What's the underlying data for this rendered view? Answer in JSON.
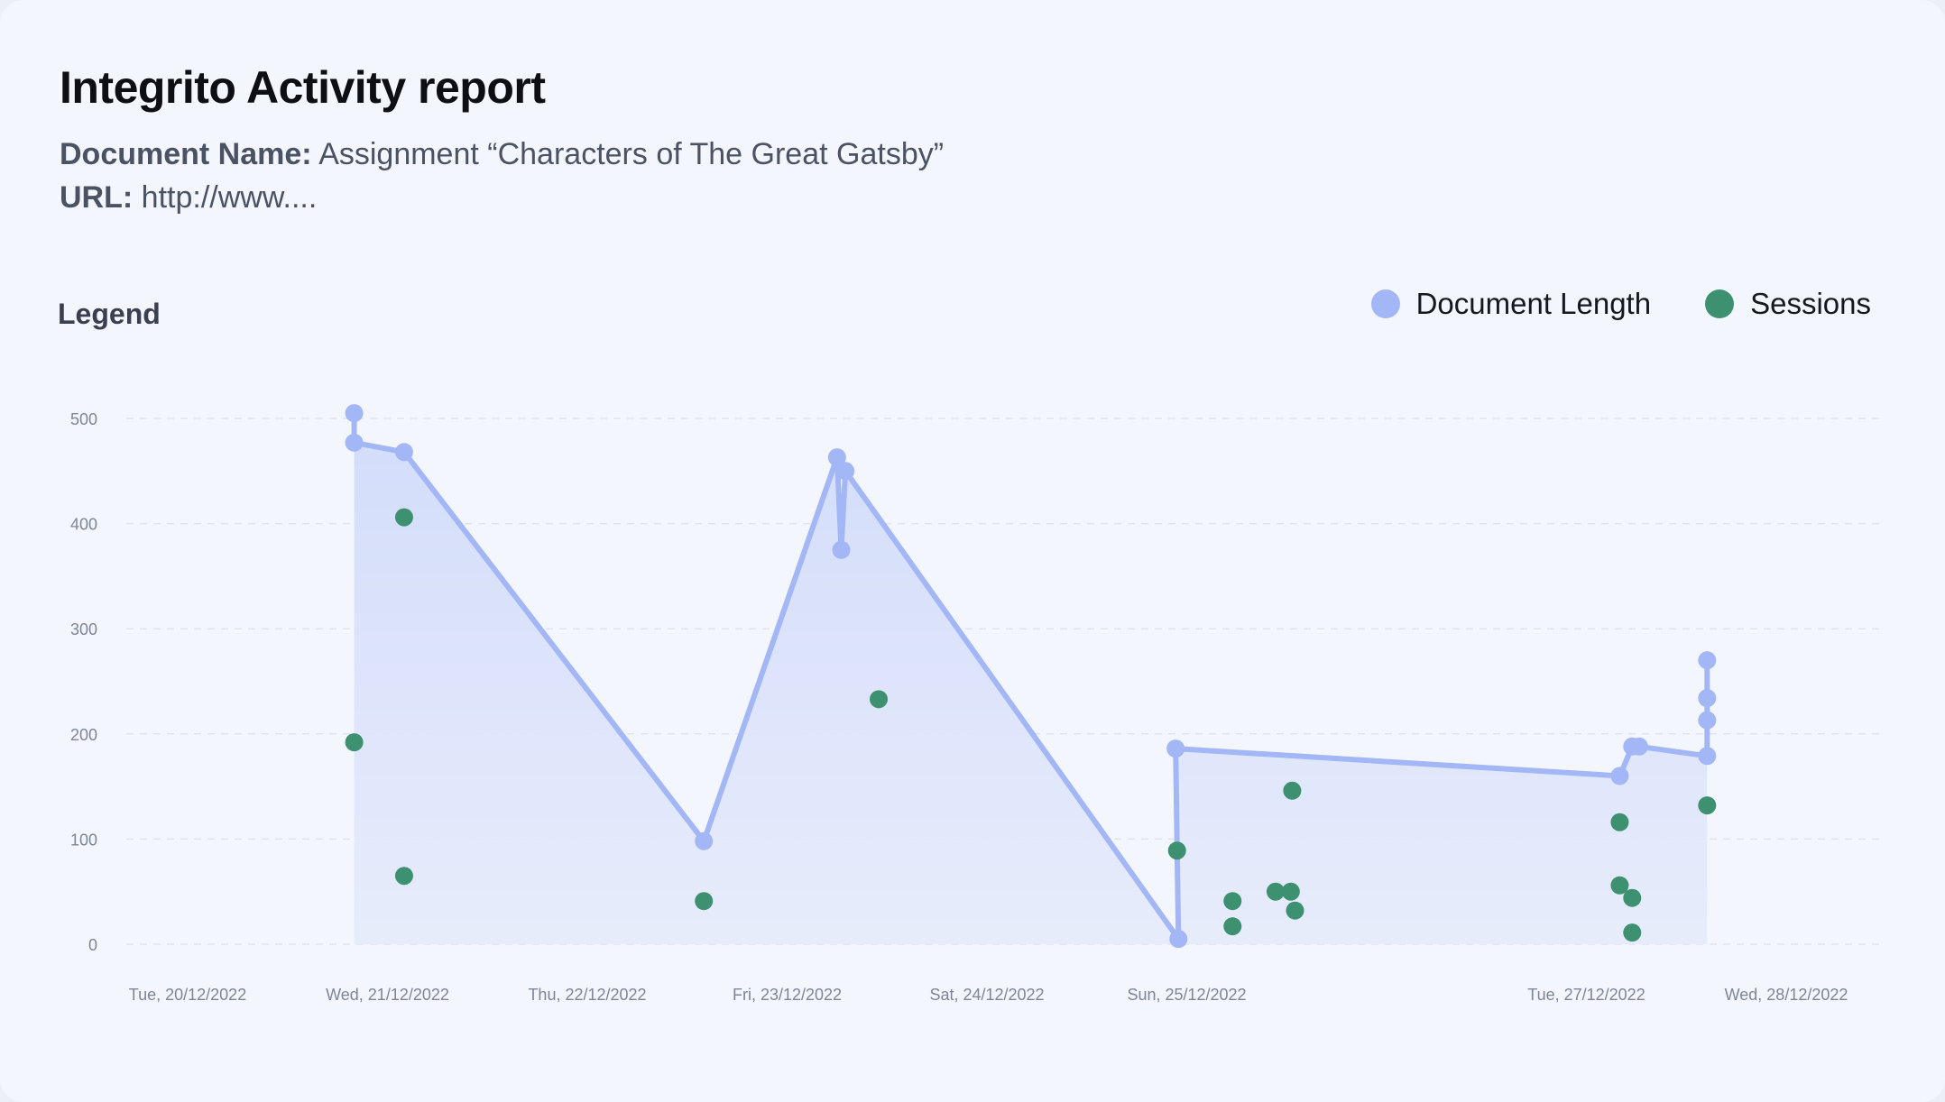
{
  "header": {
    "title": "Integrito Activity report",
    "document_name_label": "Document Name:",
    "document_name_value": "Assignment “Characters of The Great Gatsby”",
    "url_label": "URL:",
    "url_value": "http://www...."
  },
  "legend": {
    "heading": "Legend",
    "items": [
      {
        "label": "Document Length",
        "color": "#a3b6f5"
      },
      {
        "label": "Sessions",
        "color": "#3d9170"
      }
    ]
  },
  "colors": {
    "line": "#a3b6f5",
    "area_top": "#d2dcfa",
    "area_bottom": "#e6ebfb",
    "session": "#3d9170",
    "grid": "#dfe3ee",
    "tick_text": "#7d8597"
  },
  "chart_data": {
    "type": "line",
    "title": "",
    "xlabel": "",
    "ylabel": "",
    "ylim": [
      0,
      500
    ],
    "yticks": [
      0,
      100,
      200,
      300,
      400,
      500
    ],
    "x_start": "2022-12-20",
    "x_end": "2022-12-28",
    "xticks": [
      {
        "date": "2022-12-20",
        "label": "Tue, 20/12/2022"
      },
      {
        "date": "2022-12-21",
        "label": "Wed, 21/12/2022"
      },
      {
        "date": "2022-12-22",
        "label": "Thu, 22/12/2022"
      },
      {
        "date": "2022-12-23",
        "label": "Fri, 23/12/2022"
      },
      {
        "date": "2022-12-24",
        "label": "Sat, 24/12/2022"
      },
      {
        "date": "2022-12-25",
        "label": "Sun, 25/12/2022"
      },
      {
        "date": "2022-12-27",
        "label": "Tue, 27/12/2022"
      },
      {
        "date": "2022-12-28",
        "label": "Wed, 28/12/2022"
      }
    ],
    "legend_position": "top-right",
    "grid": true,
    "series": [
      {
        "name": "Document Length",
        "style": "line-area",
        "points": [
          {
            "x": "2022-12-20T20:00",
            "y": 505
          },
          {
            "x": "2022-12-20T20:00",
            "y": 477
          },
          {
            "x": "2022-12-21T02:00",
            "y": 468
          },
          {
            "x": "2022-12-22T14:00",
            "y": 98
          },
          {
            "x": "2022-12-23T06:00",
            "y": 463
          },
          {
            "x": "2022-12-23T06:30",
            "y": 375
          },
          {
            "x": "2022-12-23T07:00",
            "y": 450
          },
          {
            "x": "2022-12-24T23:00",
            "y": 5
          },
          {
            "x": "2022-12-24T22:40",
            "y": 186
          },
          {
            "x": "2022-12-27T04:00",
            "y": 160
          },
          {
            "x": "2022-12-27T05:30",
            "y": 188
          },
          {
            "x": "2022-12-27T06:20",
            "y": 188
          },
          {
            "x": "2022-12-27T14:30",
            "y": 179
          },
          {
            "x": "2022-12-27T14:30",
            "y": 213
          },
          {
            "x": "2022-12-27T14:30",
            "y": 234
          },
          {
            "x": "2022-12-27T14:30",
            "y": 270
          }
        ]
      },
      {
        "name": "Sessions",
        "style": "scatter",
        "points": [
          {
            "x": "2022-12-20T20:00",
            "y": 192
          },
          {
            "x": "2022-12-21T02:00",
            "y": 406
          },
          {
            "x": "2022-12-21T02:00",
            "y": 65
          },
          {
            "x": "2022-12-22T14:00",
            "y": 41
          },
          {
            "x": "2022-12-23T11:00",
            "y": 233
          },
          {
            "x": "2022-12-24T22:50",
            "y": 89
          },
          {
            "x": "2022-12-25T05:30",
            "y": 41
          },
          {
            "x": "2022-12-25T05:30",
            "y": 17
          },
          {
            "x": "2022-12-25T10:40",
            "y": 50
          },
          {
            "x": "2022-12-25T12:30",
            "y": 50
          },
          {
            "x": "2022-12-25T12:40",
            "y": 146
          },
          {
            "x": "2022-12-25T13:00",
            "y": 32
          },
          {
            "x": "2022-12-27T04:00",
            "y": 116
          },
          {
            "x": "2022-12-27T04:00",
            "y": 56
          },
          {
            "x": "2022-12-27T05:30",
            "y": 44
          },
          {
            "x": "2022-12-27T05:30",
            "y": 11
          },
          {
            "x": "2022-12-27T14:30",
            "y": 132
          }
        ]
      }
    ]
  }
}
